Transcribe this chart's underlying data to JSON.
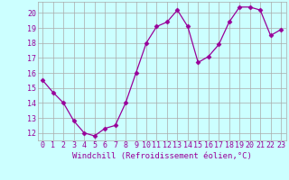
{
  "x": [
    0,
    1,
    2,
    3,
    4,
    5,
    6,
    7,
    8,
    9,
    10,
    11,
    12,
    13,
    14,
    15,
    16,
    17,
    18,
    19,
    20,
    21,
    22,
    23
  ],
  "y": [
    15.5,
    14.7,
    14.0,
    12.8,
    12.0,
    11.8,
    12.3,
    12.5,
    14.0,
    16.0,
    18.0,
    19.1,
    19.4,
    20.2,
    19.1,
    16.7,
    17.1,
    17.9,
    19.4,
    20.4,
    20.4,
    20.2,
    18.5,
    18.9
  ],
  "line_color": "#990099",
  "marker": "D",
  "marker_size": 2.5,
  "bg_color": "#ccffff",
  "grid_color": "#aaaaaa",
  "ylim": [
    11.5,
    20.75
  ],
  "xlim": [
    -0.5,
    23.5
  ],
  "xlabel": "Windchill (Refroidissement éolien,°C)",
  "xlabel_color": "#990099",
  "tick_color": "#990099",
  "label_fontsize": 6.5,
  "tick_fontsize": 6.0,
  "yticks": [
    12,
    13,
    14,
    15,
    16,
    17,
    18,
    19,
    20
  ],
  "xticks": [
    0,
    1,
    2,
    3,
    4,
    5,
    6,
    7,
    8,
    9,
    10,
    11,
    12,
    13,
    14,
    15,
    16,
    17,
    18,
    19,
    20,
    21,
    22,
    23
  ]
}
